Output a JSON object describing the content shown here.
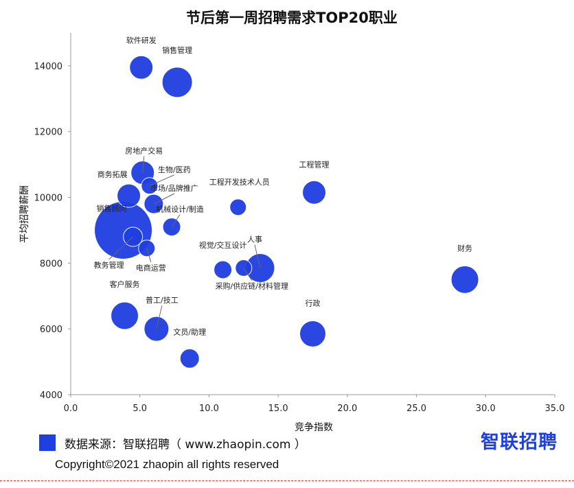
{
  "chart_data": {
    "type": "bubble",
    "title": "节后第一周招聘需求TOP20职业",
    "xlabel": "竞争指数",
    "ylabel": "平均招聘薪酬",
    "xlim": [
      0,
      35
    ],
    "ylim": [
      4000,
      15000
    ],
    "x_ticks": [
      "0.0",
      "5.0",
      "10.0",
      "15.0",
      "20.0",
      "25.0",
      "30.0",
      "35.0"
    ],
    "y_ticks": [
      "4000",
      "6000",
      "8000",
      "10000",
      "12000",
      "14000"
    ],
    "bubble_color": "#1f3fe0",
    "points": [
      {
        "name": "软件研发",
        "x": 5.1,
        "y": 13950,
        "size": 17
      },
      {
        "name": "销售管理",
        "x": 7.7,
        "y": 13500,
        "size": 22
      },
      {
        "name": "房地产交易",
        "x": 5.2,
        "y": 10750,
        "size": 17
      },
      {
        "name": "生物/医药",
        "x": 5.7,
        "y": 10350,
        "size": 12
      },
      {
        "name": "商务拓展",
        "x": 4.2,
        "y": 10050,
        "size": 17
      },
      {
        "name": "市场/品牌推广",
        "x": 6.0,
        "y": 9800,
        "size": 14
      },
      {
        "name": "机械设计/制造",
        "x": 7.3,
        "y": 9100,
        "size": 13
      },
      {
        "name": "工程开发技术人员",
        "x": 12.1,
        "y": 9700,
        "size": 12
      },
      {
        "name": "工程管理",
        "x": 17.6,
        "y": 10150,
        "size": 17
      },
      {
        "name": "销售顾问",
        "x": 3.8,
        "y": 9000,
        "size": 42
      },
      {
        "name": "教务管理",
        "x": 4.5,
        "y": 8800,
        "size": 14
      },
      {
        "name": "电商运营",
        "x": 5.5,
        "y": 8450,
        "size": 12
      },
      {
        "name": "视觉/交互设计",
        "x": 11.0,
        "y": 7800,
        "size": 13
      },
      {
        "name": "采购/供应链/材料管理",
        "x": 12.5,
        "y": 7850,
        "size": 12
      },
      {
        "name": "人事",
        "x": 13.7,
        "y": 7850,
        "size": 21
      },
      {
        "name": "财务",
        "x": 28.5,
        "y": 7500,
        "size": 20
      },
      {
        "name": "客户服务",
        "x": 3.9,
        "y": 6400,
        "size": 20
      },
      {
        "name": "普工/技工",
        "x": 6.2,
        "y": 6000,
        "size": 18
      },
      {
        "name": "行政",
        "x": 17.5,
        "y": 5850,
        "size": 19
      },
      {
        "name": "文员/助理",
        "x": 8.6,
        "y": 5100,
        "size": 14
      }
    ]
  },
  "footer": {
    "source": "数据来源：智联招聘（ www.zhaopin.com ）",
    "brand": "智联招聘",
    "copyright": "Copyright©2021 zhaopin all rights reserved"
  }
}
